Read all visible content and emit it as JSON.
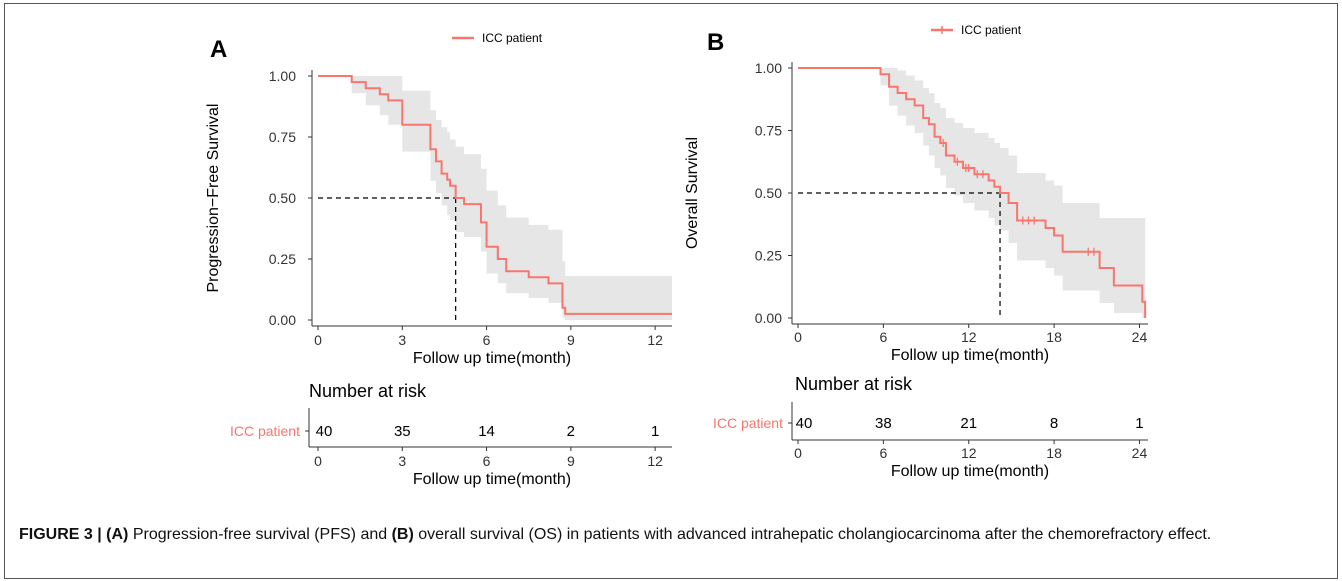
{
  "colors": {
    "curve": "#F8766D",
    "ci_band": "#E6E6E6",
    "axis": "#333333",
    "text": "#000000"
  },
  "caption": {
    "label": "FIGURE 3 | ",
    "part_a": "(A)",
    "text_a": " Progression-free survival (PFS) and ",
    "part_b": "(B)",
    "text_b": " overall survival (OS) in patients with advanced intrahepatic cholangiocarcinoma after the chemorefractory effect."
  },
  "chart_data": [
    {
      "panel": "A",
      "type": "line",
      "subtype": "kaplan-meier",
      "legend": "ICC patient",
      "ylabel": "Progression−Free Survival",
      "xlabel": "Follow up time(month)",
      "xlim": [
        0,
        12.6
      ],
      "ylim": [
        0,
        1.0
      ],
      "x_ticks": [
        "0",
        "3",
        "6",
        "9",
        "12"
      ],
      "y_ticks": [
        "0.00",
        "0.25",
        "0.50",
        "0.75",
        "1.00"
      ],
      "median_x": 4.9,
      "median_y": 0.5,
      "series": [
        {
          "name": "ICC patient",
          "x": [
            0,
            1.2,
            1.7,
            2.2,
            2.5,
            3.0,
            4.0,
            4.2,
            4.4,
            4.6,
            4.7,
            4.9,
            5.2,
            5.8,
            6.0,
            6.4,
            6.7,
            7.5,
            8.2,
            8.7,
            8.8,
            12.6
          ],
          "y": [
            1.0,
            0.975,
            0.95,
            0.925,
            0.9,
            0.8,
            0.7,
            0.65,
            0.6,
            0.575,
            0.55,
            0.5,
            0.475,
            0.4,
            0.3,
            0.25,
            0.2,
            0.175,
            0.15,
            0.05,
            0.025,
            0.025
          ],
          "ci_upper": [
            1.0,
            1.0,
            1.0,
            1.0,
            1.0,
            0.94,
            0.86,
            0.82,
            0.79,
            0.77,
            0.74,
            0.71,
            0.68,
            0.62,
            0.53,
            0.47,
            0.42,
            0.39,
            0.37,
            0.24,
            0.18,
            0.18
          ],
          "ci_lower": [
            1.0,
            0.93,
            0.88,
            0.84,
            0.8,
            0.69,
            0.57,
            0.52,
            0.47,
            0.43,
            0.41,
            0.36,
            0.34,
            0.28,
            0.19,
            0.15,
            0.11,
            0.09,
            0.07,
            0.01,
            0.0,
            0.0
          ]
        }
      ],
      "risk_table": {
        "title": "Number at risk",
        "row_label": "ICC patient",
        "times": [
          "0",
          "3",
          "6",
          "9",
          "12"
        ],
        "counts": [
          "40",
          "35",
          "14",
          "2",
          "1"
        ],
        "xlabel": "Follow up time(month)"
      }
    },
    {
      "panel": "B",
      "type": "line",
      "subtype": "kaplan-meier",
      "legend": "ICC patient",
      "ylabel": "Overall Survival",
      "xlabel": "Follow up time(month)",
      "xlim": [
        0,
        24.6
      ],
      "ylim": [
        0,
        1.0
      ],
      "x_ticks": [
        "0",
        "6",
        "12",
        "18",
        "24"
      ],
      "y_ticks": [
        "0.00",
        "0.25",
        "0.50",
        "0.75",
        "1.00"
      ],
      "median_x": 14.2,
      "median_y": 0.5,
      "series": [
        {
          "name": "ICC patient",
          "x": [
            0,
            5.8,
            6.4,
            7.0,
            7.6,
            8.2,
            8.8,
            9.2,
            9.6,
            10.0,
            10.4,
            11.0,
            11.6,
            12.4,
            13.4,
            13.8,
            14.2,
            14.8,
            15.4,
            16.8,
            17.4,
            18.0,
            18.6,
            20.2,
            21.2,
            22.2,
            24.2,
            24.4
          ],
          "y": [
            1.0,
            0.975,
            0.925,
            0.9,
            0.875,
            0.85,
            0.8,
            0.775,
            0.725,
            0.7,
            0.65,
            0.625,
            0.6,
            0.575,
            0.55,
            0.525,
            0.5,
            0.46,
            0.39,
            0.39,
            0.36,
            0.33,
            0.265,
            0.265,
            0.2,
            0.13,
            0.065,
            0.0
          ],
          "ci_upper": [
            1.0,
            1.0,
            1.0,
            0.99,
            0.97,
            0.95,
            0.92,
            0.9,
            0.86,
            0.84,
            0.8,
            0.78,
            0.76,
            0.74,
            0.72,
            0.7,
            0.68,
            0.65,
            0.58,
            0.58,
            0.55,
            0.53,
            0.46,
            0.46,
            0.4,
            0.4,
            0.4,
            0.4
          ],
          "ci_lower": [
            1.0,
            0.93,
            0.85,
            0.81,
            0.77,
            0.74,
            0.69,
            0.65,
            0.6,
            0.57,
            0.52,
            0.49,
            0.46,
            0.43,
            0.4,
            0.37,
            0.35,
            0.3,
            0.23,
            0.23,
            0.2,
            0.17,
            0.11,
            0.11,
            0.06,
            0.02,
            0.0,
            0.0
          ]
        }
      ],
      "censor_x": [
        10.2,
        11.2,
        11.8,
        12.0,
        12.6,
        13.0,
        15.8,
        16.2,
        16.6,
        20.4,
        20.8
      ],
      "risk_table": {
        "title": "Number at risk",
        "row_label": "ICC patient",
        "times": [
          "0",
          "6",
          "12",
          "18",
          "24"
        ],
        "counts": [
          "40",
          "38",
          "21",
          "8",
          "1"
        ],
        "xlabel": "Follow up time(month)"
      }
    }
  ]
}
